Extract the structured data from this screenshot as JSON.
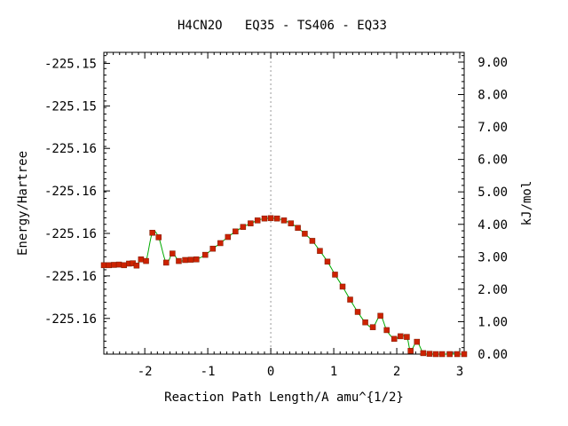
{
  "chart_data": {
    "type": "line",
    "title": "H4CN2O   EQ35 - TS406 - EQ33",
    "xlabel": "Reaction Path Length/A amu^{1/2}",
    "ylabel_left": "Energy/Hartree",
    "ylabel_right": "kJ/mol",
    "xlim": [
      -2.65,
      3.07
    ],
    "right_ylim": [
      0.0,
      9.3
    ],
    "x_ticks": [
      -2,
      -1,
      0,
      1,
      2,
      3
    ],
    "x_tick_labels": [
      "-2",
      "-1",
      "0",
      "1",
      "2",
      "3"
    ],
    "left_tick_values_kjmol": [
      8.96,
      7.65,
      6.34,
      5.03,
      3.72,
      2.41,
      1.1
    ],
    "left_tick_labels": [
      "-225.15",
      "-225.15",
      "-225.16",
      "-225.16",
      "-225.16",
      "-225.16",
      "-225.16"
    ],
    "right_ticks": [
      0,
      1,
      2,
      3,
      4,
      5,
      6,
      7,
      8,
      9
    ],
    "right_tick_labels": [
      "0.00",
      "1.00",
      "2.00",
      "3.00",
      "4.00",
      "5.00",
      "6.00",
      "7.00",
      "8.00",
      "9.00"
    ],
    "ts_marker_x": 0.0,
    "line_color": "#00aa00",
    "point_color": "#cc2200",
    "marker_color": "#999999",
    "series": [
      {
        "x": [
          -2.65,
          -2.57,
          -2.49,
          -2.41,
          -2.33,
          -2.25,
          -2.19,
          -2.13,
          -2.06,
          -1.98,
          -1.88,
          -1.78,
          -1.66,
          -1.56,
          -1.46,
          -1.36,
          -1.27,
          -1.18,
          -1.04,
          -0.92,
          -0.8,
          -0.68,
          -0.56,
          -0.44,
          -0.32,
          -0.21,
          -0.1,
          0.0,
          0.1,
          0.21,
          0.32,
          0.43,
          0.54,
          0.66,
          0.78,
          0.9,
          1.02,
          1.14,
          1.26,
          1.38,
          1.5,
          1.62,
          1.74,
          1.84,
          1.96,
          2.06,
          2.16,
          2.22,
          2.32,
          2.42,
          2.52,
          2.62,
          2.72,
          2.84,
          2.96,
          3.07
        ],
        "y": [
          2.74,
          2.74,
          2.75,
          2.76,
          2.74,
          2.79,
          2.8,
          2.73,
          2.92,
          2.87,
          3.74,
          3.6,
          2.82,
          3.1,
          2.87,
          2.9,
          2.91,
          2.92,
          3.06,
          3.25,
          3.42,
          3.61,
          3.78,
          3.92,
          4.03,
          4.12,
          4.18,
          4.19,
          4.18,
          4.12,
          4.03,
          3.89,
          3.71,
          3.49,
          3.18,
          2.85,
          2.45,
          2.08,
          1.68,
          1.3,
          0.98,
          0.83,
          1.18,
          0.74,
          0.47,
          0.55,
          0.53,
          0.1,
          0.38,
          0.03,
          0.01,
          0.0,
          0.0,
          0.0,
          0.0,
          0.0
        ]
      }
    ]
  }
}
